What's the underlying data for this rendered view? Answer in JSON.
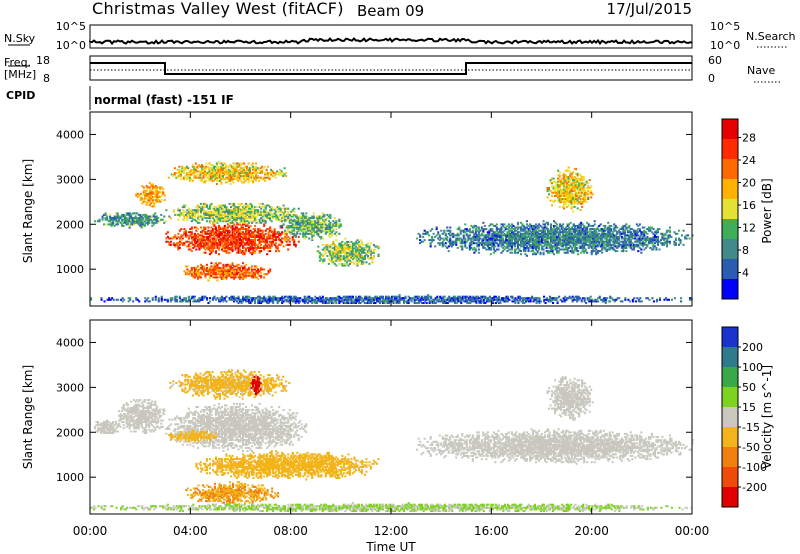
{
  "header": {
    "title": "Christmas Valley West (fitACF)",
    "beam": "Beam 09",
    "date": "17/Jul/2015"
  },
  "panels": {
    "nsky": {
      "label": "N.Sky",
      "top_tick": "10^5",
      "bottom_tick": "10^0"
    },
    "freq": {
      "label_line1": "Freq.",
      "label_line2": "[MHz]",
      "ticks": [
        "18",
        "8"
      ],
      "right_ticks": [
        "60",
        "0"
      ]
    },
    "cpid": {
      "label": "CPID",
      "mode_text": "normal (fast) -151 IF"
    },
    "nsearch_label": "N.Search",
    "nave_label": "Nave"
  },
  "colors": {
    "power_scale": [
      "#0000ff",
      "#2a5db0",
      "#3f8a8a",
      "#3fae5a",
      "#e6e233",
      "#ffb300",
      "#ff6a00",
      "#ff2a00",
      "#e60000"
    ],
    "velocity_scale": [
      "#1a33cc",
      "#2f7a8c",
      "#38a84a",
      "#7ed321",
      "#c8c8bf",
      "#f2b41a",
      "#f07f0f",
      "#ef4a0a",
      "#e00000"
    ]
  },
  "chart_data": [
    {
      "type": "heatmap",
      "name": "Power",
      "ylabel": "Slant Range [km]",
      "yticks": [
        "4000",
        "3000",
        "2000",
        "1000"
      ],
      "ylim": [
        180,
        4500
      ],
      "xlim": [
        0,
        24
      ],
      "colorbar_label": "Power [dB]",
      "colorbar_ticks": [
        "28",
        "24",
        "20",
        "16",
        "12",
        "8",
        "4"
      ],
      "colorbar_range": [
        0,
        32
      ],
      "echo_regions": [
        {
          "x0": 0.1,
          "x1": 3.0,
          "y0": 1880,
          "y1": 2300,
          "value": 10
        },
        {
          "x0": 1.8,
          "x1": 3.0,
          "y0": 2350,
          "y1": 2950,
          "value": 20
        },
        {
          "x0": 3.0,
          "x1": 8.3,
          "y0": 1250,
          "y1": 2050,
          "value": 26
        },
        {
          "x0": 3.0,
          "x1": 8.4,
          "y0": 1950,
          "y1": 2500,
          "value": 14
        },
        {
          "x0": 3.1,
          "x1": 7.8,
          "y0": 2850,
          "y1": 3400,
          "value": 18
        },
        {
          "x0": 3.6,
          "x1": 7.2,
          "y0": 700,
          "y1": 1150,
          "value": 24
        },
        {
          "x0": 7.5,
          "x1": 10.0,
          "y0": 1600,
          "y1": 2300,
          "value": 12
        },
        {
          "x0": 9.0,
          "x1": 11.5,
          "y0": 1000,
          "y1": 1700,
          "value": 14
        },
        {
          "x0": 0.0,
          "x1": 24.0,
          "y0": 200,
          "y1": 420,
          "value": 6
        },
        {
          "x0": 13.0,
          "x1": 24.0,
          "y0": 1250,
          "y1": 2100,
          "value": 8
        },
        {
          "x0": 18.2,
          "x1": 20.0,
          "y0": 2200,
          "y1": 3300,
          "value": 18
        }
      ]
    },
    {
      "type": "heatmap",
      "name": "Velocity",
      "ylabel": "Slant Range [km]",
      "yticks": [
        "4000",
        "3000",
        "2000",
        "1000"
      ],
      "ylim": [
        180,
        4500
      ],
      "xlim": [
        0,
        24
      ],
      "xticks": [
        "00:00",
        "04:00",
        "08:00",
        "12:00",
        "16:00",
        "20:00",
        "00:00"
      ],
      "xlabel": "Time UT",
      "colorbar_label": "Velocity [m s^-1]",
      "colorbar_ticks": [
        "200",
        "100",
        "50",
        "15",
        "-15",
        "-50",
        "-100",
        "-200"
      ],
      "colorbar_range": [
        -250,
        250
      ],
      "echo_regions": [
        {
          "x0": 1.0,
          "x1": 3.0,
          "y0": 1900,
          "y1": 2800,
          "value": 0
        },
        {
          "x0": 0.1,
          "x1": 1.2,
          "y0": 1900,
          "y1": 2300,
          "value": 0
        },
        {
          "x0": 3.0,
          "x1": 8.6,
          "y0": 1500,
          "y1": 2700,
          "value": 0
        },
        {
          "x0": 3.1,
          "x1": 8.0,
          "y0": 2700,
          "y1": 3400,
          "value": -40
        },
        {
          "x0": 3.0,
          "x1": 5.0,
          "y0": 1750,
          "y1": 2050,
          "value": -40
        },
        {
          "x0": 4.2,
          "x1": 11.5,
          "y0": 900,
          "y1": 1600,
          "value": -55
        },
        {
          "x0": 3.8,
          "x1": 7.5,
          "y0": 350,
          "y1": 900,
          "value": -80
        },
        {
          "x0": 6.4,
          "x1": 6.8,
          "y0": 2800,
          "y1": 3300,
          "value": -220
        },
        {
          "x0": 0.0,
          "x1": 24.0,
          "y0": 200,
          "y1": 420,
          "value": 30
        },
        {
          "x0": 13.0,
          "x1": 24.0,
          "y0": 1250,
          "y1": 2100,
          "value": 0
        },
        {
          "x0": 18.2,
          "x1": 20.0,
          "y0": 2200,
          "y1": 3300,
          "value": 0
        }
      ]
    }
  ]
}
